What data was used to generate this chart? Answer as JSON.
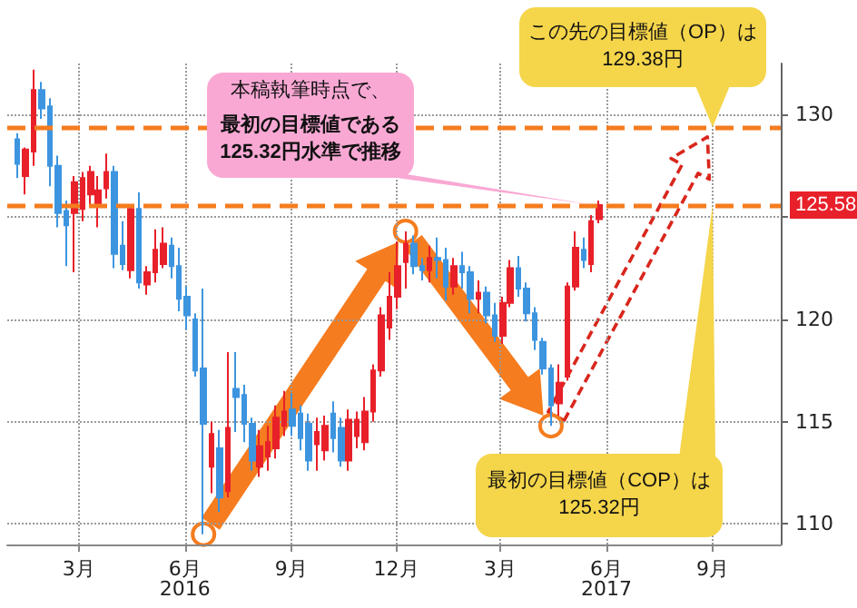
{
  "chart_data": {
    "type": "candlestick",
    "x": [
      "2016-01-08",
      "2016-01-15",
      "2016-01-22",
      "2016-01-29",
      "2016-02-05",
      "2016-02-12",
      "2016-02-19",
      "2016-02-26",
      "2016-03-04",
      "2016-03-11",
      "2016-03-18",
      "2016-03-25",
      "2016-04-01",
      "2016-04-08",
      "2016-04-15",
      "2016-04-22",
      "2016-04-29",
      "2016-05-06",
      "2016-05-13",
      "2016-05-20",
      "2016-05-27",
      "2016-06-03",
      "2016-06-10",
      "2016-06-17",
      "2016-06-24",
      "2016-07-01",
      "2016-07-08",
      "2016-07-15",
      "2016-07-22",
      "2016-07-29",
      "2016-08-05",
      "2016-08-12",
      "2016-08-19",
      "2016-08-26",
      "2016-09-02",
      "2016-09-09",
      "2016-09-16",
      "2016-09-23",
      "2016-09-30",
      "2016-10-07",
      "2016-10-14",
      "2016-10-21",
      "2016-10-28",
      "2016-11-04",
      "2016-11-11",
      "2016-11-18",
      "2016-11-25",
      "2016-12-02",
      "2016-12-09",
      "2016-12-16",
      "2016-12-23",
      "2016-12-30",
      "2017-01-06",
      "2017-01-13",
      "2017-01-20",
      "2017-01-27",
      "2017-02-03",
      "2017-02-10",
      "2017-02-17",
      "2017-02-24",
      "2017-03-03",
      "2017-03-10",
      "2017-03-17",
      "2017-03-24",
      "2017-03-31",
      "2017-04-07",
      "2017-04-14",
      "2017-04-21",
      "2017-04-28",
      "2017-05-05",
      "2017-05-12",
      "2017-05-19",
      "2017-05-26"
    ],
    "ohlc": [
      [
        128.8,
        129.1,
        126.9,
        127.6
      ],
      [
        127.0,
        128.4,
        126.1,
        128.3
      ],
      [
        128.2,
        132.2,
        127.5,
        131.2
      ],
      [
        131.2,
        131.6,
        129.8,
        130.3
      ],
      [
        130.4,
        130.8,
        126.5,
        127.5
      ],
      [
        127.5,
        128.0,
        124.5,
        125.2
      ],
      [
        125.3,
        125.8,
        122.6,
        124.6
      ],
      [
        125.2,
        127.0,
        122.3,
        126.7
      ],
      [
        125.4,
        127.2,
        124.8,
        126.9
      ],
      [
        126.1,
        127.5,
        125.5,
        127.2
      ],
      [
        125.5,
        127.0,
        124.5,
        126.3
      ],
      [
        126.4,
        128.1,
        125.9,
        127.2
      ],
      [
        127.2,
        127.5,
        122.5,
        123.2
      ],
      [
        123.6,
        124.8,
        122.4,
        122.7
      ],
      [
        122.4,
        125.6,
        122.0,
        125.4
      ],
      [
        125.4,
        126.2,
        121.5,
        121.8
      ],
      [
        121.7,
        122.6,
        121.2,
        122.3
      ],
      [
        122.3,
        124.4,
        121.8,
        123.4
      ],
      [
        122.7,
        124.5,
        122.5,
        123.7
      ],
      [
        123.6,
        124.0,
        122.0,
        122.6
      ],
      [
        122.6,
        123.5,
        120.4,
        121.0
      ],
      [
        121.1,
        121.6,
        119.5,
        120.2
      ],
      [
        120.0,
        120.3,
        117.2,
        117.5
      ],
      [
        117.6,
        121.5,
        109.5,
        114.9
      ],
      [
        112.8,
        115.0,
        111.5,
        114.4
      ],
      [
        113.7,
        114.6,
        110.6,
        111.3
      ],
      [
        111.6,
        118.4,
        111.3,
        114.7
      ],
      [
        116.6,
        118.4,
        114.5,
        116.2
      ],
      [
        116.3,
        116.8,
        114.0,
        114.9
      ],
      [
        114.9,
        115.2,
        112.6,
        113.1
      ],
      [
        112.8,
        114.6,
        112.3,
        113.8
      ],
      [
        113.3,
        114.8,
        112.6,
        114.0
      ],
      [
        113.7,
        115.8,
        113.2,
        115.2
      ],
      [
        114.8,
        116.5,
        114.3,
        115.5
      ],
      [
        115.6,
        116.4,
        114.3,
        114.8
      ],
      [
        115.4,
        115.8,
        113.6,
        114.2
      ],
      [
        114.9,
        115.4,
        112.6,
        113.1
      ],
      [
        113.9,
        115.2,
        112.6,
        114.5
      ],
      [
        113.6,
        115.3,
        113.1,
        114.8
      ],
      [
        115.4,
        116.0,
        113.5,
        114.2
      ],
      [
        114.7,
        115.2,
        112.8,
        113.1
      ],
      [
        113.1,
        115.6,
        112.6,
        115.1
      ],
      [
        114.3,
        115.5,
        113.7,
        115.1
      ],
      [
        114.0,
        116.2,
        113.6,
        115.5
      ],
      [
        115.5,
        117.8,
        115.0,
        117.5
      ],
      [
        117.5,
        120.6,
        117.2,
        120.2
      ],
      [
        119.6,
        122.3,
        119.0,
        121.1
      ],
      [
        121.1,
        123.8,
        120.5,
        122.6
      ],
      [
        122.8,
        124.3,
        121.5,
        123.7
      ],
      [
        123.7,
        124.1,
        122.2,
        122.6
      ],
      [
        122.6,
        123.0,
        121.9,
        122.4
      ],
      [
        122.4,
        123.6,
        121.8,
        123.0
      ],
      [
        123.0,
        124.0,
        122.0,
        122.9
      ],
      [
        122.9,
        123.5,
        120.9,
        121.6
      ],
      [
        121.6,
        123.0,
        121.2,
        122.6
      ],
      [
        122.6,
        123.3,
        121.5,
        122.3
      ],
      [
        122.3,
        122.6,
        120.3,
        121.0
      ],
      [
        121.0,
        121.9,
        120.3,
        121.3
      ],
      [
        121.3,
        121.6,
        119.8,
        120.2
      ],
      [
        120.2,
        120.8,
        118.9,
        119.2
      ],
      [
        119.2,
        121.1,
        118.8,
        120.8
      ],
      [
        120.8,
        122.9,
        120.6,
        122.5
      ],
      [
        122.5,
        123.1,
        121.1,
        121.5
      ],
      [
        121.5,
        121.8,
        119.9,
        120.3
      ],
      [
        120.3,
        120.6,
        118.5,
        119.0
      ],
      [
        118.9,
        119.1,
        117.3,
        117.6
      ],
      [
        117.6,
        117.8,
        114.8,
        115.8
      ],
      [
        115.9,
        117.8,
        115.3,
        116.9
      ],
      [
        117.2,
        121.8,
        117.0,
        121.6
      ],
      [
        121.6,
        124.3,
        121.4,
        123.5
      ],
      [
        123.4,
        124.0,
        122.5,
        122.9
      ],
      [
        122.7,
        125.1,
        122.3,
        124.8
      ],
      [
        124.9,
        125.8,
        124.7,
        125.58
      ]
    ],
    "colors": [
      "#3d95e0",
      "#e8202a",
      "#e8202a",
      "#3d95e0",
      "#3d95e0",
      "#3d95e0",
      "#3d95e0",
      "#e8202a",
      "#e8202a",
      "#e8202a",
      "#e8202a",
      "#e8202a",
      "#3d95e0",
      "#3d95e0",
      "#e8202a",
      "#3d95e0",
      "#e8202a",
      "#e8202a",
      "#e8202a",
      "#3d95e0",
      "#3d95e0",
      "#3d95e0",
      "#3d95e0",
      "#3d95e0",
      "#e8202a",
      "#3d95e0",
      "#e8202a",
      "#3d95e0",
      "#3d95e0",
      "#3d95e0",
      "#e8202a",
      "#e8202a",
      "#e8202a",
      "#e8202a",
      "#3d95e0",
      "#3d95e0",
      "#3d95e0",
      "#e8202a",
      "#e8202a",
      "#3d95e0",
      "#3d95e0",
      "#e8202a",
      "#e8202a",
      "#e8202a",
      "#e8202a",
      "#e8202a",
      "#e8202a",
      "#e8202a",
      "#e8202a",
      "#3d95e0",
      "#3d95e0",
      "#e8202a",
      "#3d95e0",
      "#3d95e0",
      "#e8202a",
      "#3d95e0",
      "#3d95e0",
      "#e8202a",
      "#3d95e0",
      "#3d95e0",
      "#e8202a",
      "#e8202a",
      "#3d95e0",
      "#3d95e0",
      "#3d95e0",
      "#3d95e0",
      "#3d95e0",
      "#e8202a",
      "#e8202a",
      "#e8202a",
      "#3d95e0",
      "#e8202a",
      "#e8202a"
    ],
    "xlim": [
      "2015-12-30",
      "2017-10-30"
    ],
    "xticks": [
      {
        "value": "2016-03-01",
        "label": "3月"
      },
      {
        "value": "2016-06-01",
        "label": "6月\n2016"
      },
      {
        "value": "2016-09-01",
        "label": "9月"
      },
      {
        "value": "2016-12-01",
        "label": "12月"
      },
      {
        "value": "2017-03-01",
        "label": "3月"
      },
      {
        "value": "2017-06-01",
        "label": "6月\n2017"
      },
      {
        "value": "2017-09-01",
        "label": "9月"
      }
    ],
    "ylim": [
      109,
      132.5
    ],
    "yticks": [
      110,
      115,
      120,
      {
        "value": 125,
        "label": null
      },
      130
    ],
    "grid": true,
    "ref_lines": [
      {
        "axis": "y",
        "value": 129.38,
        "color": "#f57c1f",
        "line_style": "dashed"
      },
      {
        "axis": "y",
        "value": 125.58,
        "label": "125.58",
        "color": "#f57c1f",
        "line_style": "dashed"
      }
    ],
    "annotations": [
      "本稿執筆時点で、",
      {
        "text": "最初の目標値である125.32円水準で推移",
        "x": "2017-05-19",
        "y": 125.6
      },
      {
        "text": "この先の目標値（OP）は129.38円",
        "x": "2017-09-01",
        "y": 129.38
      },
      {
        "text": "最初の目標値（COP）は125.32円",
        "x": "2017-09-01",
        "y": 125.6
      }
    ]
  }
}
